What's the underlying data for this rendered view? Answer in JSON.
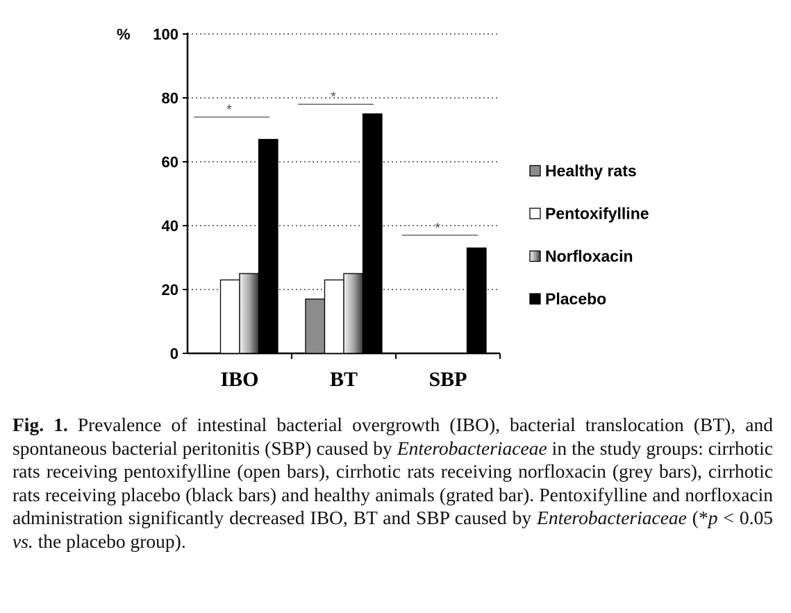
{
  "chart_data": {
    "type": "bar",
    "ylabel": "%",
    "ylim": [
      0,
      100
    ],
    "yticks": [
      "0",
      "20",
      "40",
      "60",
      "80",
      "100"
    ],
    "grid": "horizontal dotted",
    "legend_position": "right",
    "categories": [
      "IBO",
      "BT",
      "SBP"
    ],
    "series": [
      {
        "name": "Healthy rats",
        "values": [
          0,
          17,
          0
        ],
        "color": "#8c8c8c"
      },
      {
        "name": "Pentoxifylline",
        "values": [
          23,
          23,
          0
        ],
        "color": "#ffffff"
      },
      {
        "name": "Norfloxacin",
        "values": [
          25,
          25,
          0
        ],
        "color": "#c8c8c8"
      },
      {
        "name": "Placebo",
        "values": [
          67,
          75,
          33
        ],
        "color": "#000000"
      }
    ],
    "significance": [
      {
        "category": "IBO",
        "value": 74,
        "label": "*"
      },
      {
        "category": "BT",
        "value": 78,
        "label": "*"
      },
      {
        "category": "SBP",
        "value": 37,
        "label": "*"
      }
    ]
  },
  "caption": {
    "fig_label": "Fig. 1.",
    "text_1": " Prevalence of intestinal bacterial overgrowth (IBO), bacterial translocation (BT), and spontaneous bacterial peritonitis (SBP) caused by ",
    "italic_1": "Enterobacteriaceae",
    "text_2": " in the study groups: cirrhotic rats receiving pentoxifylline (open bars), cirrhotic rats receiving norfloxacin (grey bars), cirrhotic rats receiving placebo (black bars) and healthy animals (grated bar). Pentoxifylline and norfloxacin administration significantly decreased IBO, BT and SBP caused by ",
    "italic_2": "Enterobacteriaceae",
    "text_3": " (*",
    "italic_3": "p",
    "text_4": " < 0.05 ",
    "italic_4": "vs.",
    "text_5": " the placebo group)."
  }
}
